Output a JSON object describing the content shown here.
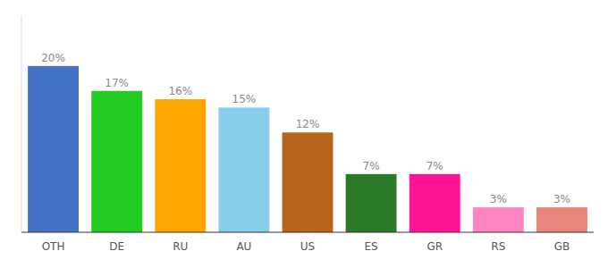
{
  "chart_data": {
    "type": "bar",
    "categories": [
      "OTH",
      "DE",
      "RU",
      "AU",
      "US",
      "ES",
      "GR",
      "RS",
      "GB"
    ],
    "values": [
      20,
      17,
      16,
      15,
      12,
      7,
      7,
      3,
      3
    ],
    "value_labels": [
      "20%",
      "17%",
      "16%",
      "15%",
      "12%",
      "7%",
      "7%",
      "3%",
      "3%"
    ],
    "colors": [
      "#4472c4",
      "#22cc22",
      "#ffa500",
      "#87ceeb",
      "#b5651d",
      "#2a7a2a",
      "#ff1493",
      "#ff85c0",
      "#e8867c"
    ],
    "ylim": [
      0,
      26
    ],
    "data_labels": true,
    "tick_labels": "x"
  }
}
